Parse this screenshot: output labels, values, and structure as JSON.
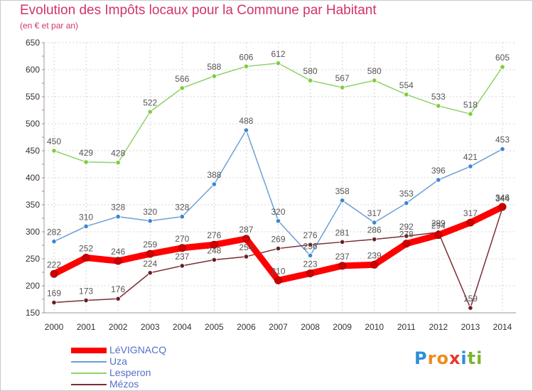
{
  "title": "Evolution des Impôts locaux pour la Commune par Habitant",
  "subtitle": "(en € et par an)",
  "logo": [
    "P",
    "r",
    "o",
    "x",
    "i",
    "t",
    "i"
  ],
  "logo_colors": [
    "#2c8fd6",
    "#f08a1d",
    "#f08a1d",
    "#e8362d",
    "#2c8fd6",
    "#7ab52e",
    "#7ab52e"
  ],
  "chart_data": {
    "type": "line",
    "title": "Evolution des Impôts locaux pour la Commune par Habitant",
    "subtitle": "(en € et par an)",
    "xlabel": "",
    "ylabel": "",
    "categories": [
      "2000",
      "2001",
      "2002",
      "2003",
      "2004",
      "2005",
      "2006",
      "2007",
      "2008",
      "2009",
      "2010",
      "2011",
      "2012",
      "2013",
      "2014"
    ],
    "ylim": [
      150,
      650
    ],
    "yticks": [
      150,
      200,
      250,
      300,
      350,
      400,
      450,
      500,
      550,
      600,
      650
    ],
    "grid": true,
    "legend_position": "bottom-left",
    "series": [
      {
        "name": "Lesperon",
        "color": "#8fd16a",
        "marker": "#7ccf3a",
        "values": [
          450,
          429,
          428,
          522,
          566,
          588,
          606,
          612,
          580,
          567,
          580,
          554,
          533,
          518,
          605
        ]
      },
      {
        "name": "Uza",
        "color": "#6aa0d6",
        "marker": "#3d86d0",
        "values": [
          282,
          310,
          328,
          320,
          328,
          388,
          488,
          320,
          256,
          358,
          317,
          353,
          396,
          421,
          453
        ]
      },
      {
        "name": "Mézos",
        "color": "#7a2e36",
        "marker": "#6b1f22",
        "values": [
          169,
          173,
          176,
          224,
          237,
          248,
          254,
          269,
          276,
          281,
          286,
          292,
          299,
          159,
          344
        ]
      },
      {
        "name": "LéVIGNACQ",
        "color": "#ff0000",
        "marker": "#cc0000",
        "values": [
          222,
          252,
          246,
          259,
          270,
          276,
          287,
          210,
          223,
          237,
          239,
          278,
          294,
          317,
          346
        ]
      }
    ],
    "data_labels": {
      "Lesperon": [
        "450",
        "429",
        "428",
        "522",
        "566",
        "588",
        "606",
        "612",
        "580",
        "567",
        "580",
        "554",
        "533",
        "518",
        "605"
      ],
      "Uza": [
        "282",
        "310",
        "328",
        "320",
        "328",
        "388",
        "488",
        "320",
        "256",
        "358",
        "317",
        "353",
        "396",
        "421",
        "453"
      ],
      "Mézos": [
        "169",
        "173",
        "176",
        "224",
        "237",
        "248",
        "254",
        "269",
        "276",
        "281",
        "286",
        "292",
        "299",
        "159",
        "344"
      ],
      "LéVIGNACQ": [
        "222",
        "252",
        "246",
        "259",
        "270",
        "276",
        "287",
        "210",
        "223",
        "237",
        "239",
        "278",
        "294",
        "317",
        "346"
      ]
    },
    "legend": [
      "LéVIGNACQ",
      "Uza",
      "Lesperon",
      "Mézos"
    ]
  }
}
